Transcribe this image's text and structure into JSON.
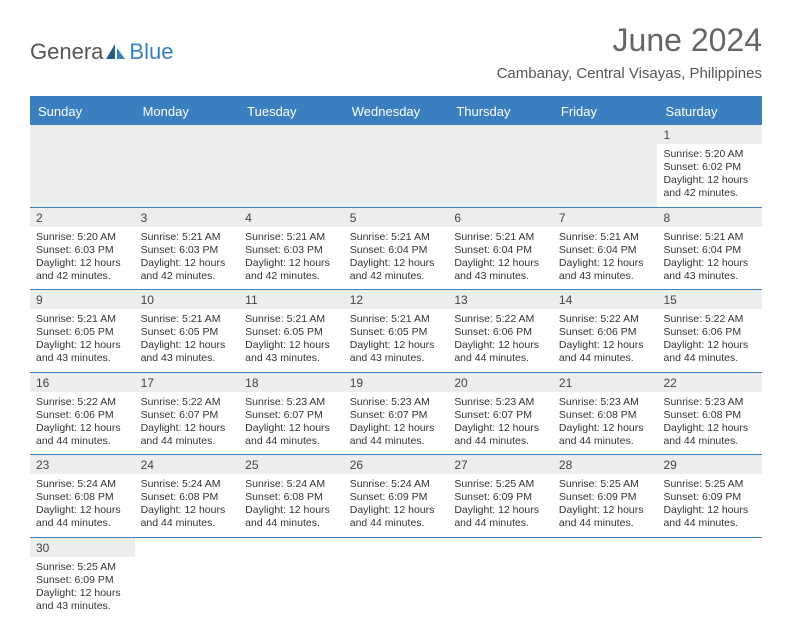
{
  "logo": {
    "text1": "Genera",
    "text2": "Blue"
  },
  "title": "June 2024",
  "location": "Cambanay, Central Visayas, Philippines",
  "colors": {
    "header_bg": "#3a7fbf",
    "numrow_bg": "#eceded",
    "text": "#333333",
    "title": "#666666"
  },
  "day_headers": [
    "Sunday",
    "Monday",
    "Tuesday",
    "Wednesday",
    "Thursday",
    "Friday",
    "Saturday"
  ],
  "weeks": [
    {
      "row_type": "first",
      "days": [
        null,
        null,
        null,
        null,
        null,
        null,
        {
          "n": "1",
          "sunrise": "Sunrise: 5:20 AM",
          "sunset": "Sunset: 6:02 PM",
          "day1": "Daylight: 12 hours",
          "day2": "and 42 minutes."
        }
      ]
    },
    {
      "days": [
        {
          "n": "2",
          "sunrise": "Sunrise: 5:20 AM",
          "sunset": "Sunset: 6:03 PM",
          "day1": "Daylight: 12 hours",
          "day2": "and 42 minutes."
        },
        {
          "n": "3",
          "sunrise": "Sunrise: 5:21 AM",
          "sunset": "Sunset: 6:03 PM",
          "day1": "Daylight: 12 hours",
          "day2": "and 42 minutes."
        },
        {
          "n": "4",
          "sunrise": "Sunrise: 5:21 AM",
          "sunset": "Sunset: 6:03 PM",
          "day1": "Daylight: 12 hours",
          "day2": "and 42 minutes."
        },
        {
          "n": "5",
          "sunrise": "Sunrise: 5:21 AM",
          "sunset": "Sunset: 6:04 PM",
          "day1": "Daylight: 12 hours",
          "day2": "and 42 minutes."
        },
        {
          "n": "6",
          "sunrise": "Sunrise: 5:21 AM",
          "sunset": "Sunset: 6:04 PM",
          "day1": "Daylight: 12 hours",
          "day2": "and 43 minutes."
        },
        {
          "n": "7",
          "sunrise": "Sunrise: 5:21 AM",
          "sunset": "Sunset: 6:04 PM",
          "day1": "Daylight: 12 hours",
          "day2": "and 43 minutes."
        },
        {
          "n": "8",
          "sunrise": "Sunrise: 5:21 AM",
          "sunset": "Sunset: 6:04 PM",
          "day1": "Daylight: 12 hours",
          "day2": "and 43 minutes."
        }
      ]
    },
    {
      "days": [
        {
          "n": "9",
          "sunrise": "Sunrise: 5:21 AM",
          "sunset": "Sunset: 6:05 PM",
          "day1": "Daylight: 12 hours",
          "day2": "and 43 minutes."
        },
        {
          "n": "10",
          "sunrise": "Sunrise: 5:21 AM",
          "sunset": "Sunset: 6:05 PM",
          "day1": "Daylight: 12 hours",
          "day2": "and 43 minutes."
        },
        {
          "n": "11",
          "sunrise": "Sunrise: 5:21 AM",
          "sunset": "Sunset: 6:05 PM",
          "day1": "Daylight: 12 hours",
          "day2": "and 43 minutes."
        },
        {
          "n": "12",
          "sunrise": "Sunrise: 5:21 AM",
          "sunset": "Sunset: 6:05 PM",
          "day1": "Daylight: 12 hours",
          "day2": "and 43 minutes."
        },
        {
          "n": "13",
          "sunrise": "Sunrise: 5:22 AM",
          "sunset": "Sunset: 6:06 PM",
          "day1": "Daylight: 12 hours",
          "day2": "and 44 minutes."
        },
        {
          "n": "14",
          "sunrise": "Sunrise: 5:22 AM",
          "sunset": "Sunset: 6:06 PM",
          "day1": "Daylight: 12 hours",
          "day2": "and 44 minutes."
        },
        {
          "n": "15",
          "sunrise": "Sunrise: 5:22 AM",
          "sunset": "Sunset: 6:06 PM",
          "day1": "Daylight: 12 hours",
          "day2": "and 44 minutes."
        }
      ]
    },
    {
      "days": [
        {
          "n": "16",
          "sunrise": "Sunrise: 5:22 AM",
          "sunset": "Sunset: 6:06 PM",
          "day1": "Daylight: 12 hours",
          "day2": "and 44 minutes."
        },
        {
          "n": "17",
          "sunrise": "Sunrise: 5:22 AM",
          "sunset": "Sunset: 6:07 PM",
          "day1": "Daylight: 12 hours",
          "day2": "and 44 minutes."
        },
        {
          "n": "18",
          "sunrise": "Sunrise: 5:23 AM",
          "sunset": "Sunset: 6:07 PM",
          "day1": "Daylight: 12 hours",
          "day2": "and 44 minutes."
        },
        {
          "n": "19",
          "sunrise": "Sunrise: 5:23 AM",
          "sunset": "Sunset: 6:07 PM",
          "day1": "Daylight: 12 hours",
          "day2": "and 44 minutes."
        },
        {
          "n": "20",
          "sunrise": "Sunrise: 5:23 AM",
          "sunset": "Sunset: 6:07 PM",
          "day1": "Daylight: 12 hours",
          "day2": "and 44 minutes."
        },
        {
          "n": "21",
          "sunrise": "Sunrise: 5:23 AM",
          "sunset": "Sunset: 6:08 PM",
          "day1": "Daylight: 12 hours",
          "day2": "and 44 minutes."
        },
        {
          "n": "22",
          "sunrise": "Sunrise: 5:23 AM",
          "sunset": "Sunset: 6:08 PM",
          "day1": "Daylight: 12 hours",
          "day2": "and 44 minutes."
        }
      ]
    },
    {
      "days": [
        {
          "n": "23",
          "sunrise": "Sunrise: 5:24 AM",
          "sunset": "Sunset: 6:08 PM",
          "day1": "Daylight: 12 hours",
          "day2": "and 44 minutes."
        },
        {
          "n": "24",
          "sunrise": "Sunrise: 5:24 AM",
          "sunset": "Sunset: 6:08 PM",
          "day1": "Daylight: 12 hours",
          "day2": "and 44 minutes."
        },
        {
          "n": "25",
          "sunrise": "Sunrise: 5:24 AM",
          "sunset": "Sunset: 6:08 PM",
          "day1": "Daylight: 12 hours",
          "day2": "and 44 minutes."
        },
        {
          "n": "26",
          "sunrise": "Sunrise: 5:24 AM",
          "sunset": "Sunset: 6:09 PM",
          "day1": "Daylight: 12 hours",
          "day2": "and 44 minutes."
        },
        {
          "n": "27",
          "sunrise": "Sunrise: 5:25 AM",
          "sunset": "Sunset: 6:09 PM",
          "day1": "Daylight: 12 hours",
          "day2": "and 44 minutes."
        },
        {
          "n": "28",
          "sunrise": "Sunrise: 5:25 AM",
          "sunset": "Sunset: 6:09 PM",
          "day1": "Daylight: 12 hours",
          "day2": "and 44 minutes."
        },
        {
          "n": "29",
          "sunrise": "Sunrise: 5:25 AM",
          "sunset": "Sunset: 6:09 PM",
          "day1": "Daylight: 12 hours",
          "day2": "and 44 minutes."
        }
      ]
    },
    {
      "row_type": "last",
      "days": [
        {
          "n": "30",
          "sunrise": "Sunrise: 5:25 AM",
          "sunset": "Sunset: 6:09 PM",
          "day1": "Daylight: 12 hours",
          "day2": "and 43 minutes."
        },
        null,
        null,
        null,
        null,
        null,
        null
      ]
    }
  ]
}
